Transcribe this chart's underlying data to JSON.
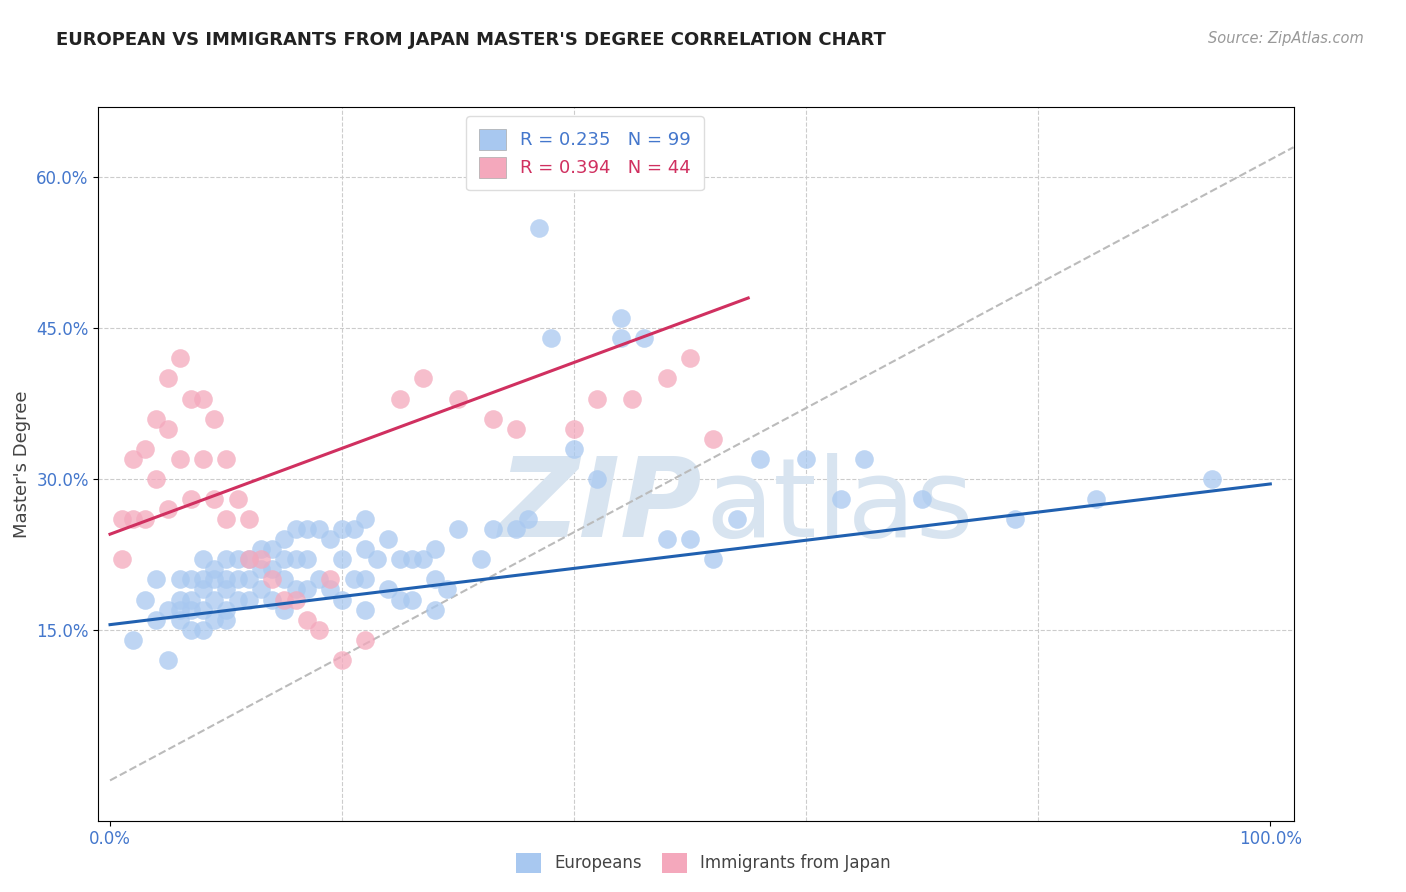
{
  "title": "EUROPEAN VS IMMIGRANTS FROM JAPAN MASTER'S DEGREE CORRELATION CHART",
  "source": "Source: ZipAtlas.com",
  "ylabel": "Master's Degree",
  "ytick_labels": [
    "15.0%",
    "30.0%",
    "45.0%",
    "60.0%"
  ],
  "ytick_values": [
    0.15,
    0.3,
    0.45,
    0.6
  ],
  "xlim": [
    -0.01,
    1.02
  ],
  "ylim": [
    -0.04,
    0.67
  ],
  "legend_blue_r": "0.235",
  "legend_blue_n": "99",
  "legend_pink_r": "0.394",
  "legend_pink_n": "44",
  "blue_color": "#A8C8F0",
  "pink_color": "#F4A8BC",
  "blue_line_color": "#2060B0",
  "pink_line_color": "#D03060",
  "dashed_line_color": "#BBBBBB",
  "watermark_zip": "ZIP",
  "watermark_atlas": "atlas",
  "watermark_color": "#D8E4F0",
  "blue_scatter_x": [
    0.02,
    0.03,
    0.04,
    0.04,
    0.05,
    0.05,
    0.06,
    0.06,
    0.06,
    0.06,
    0.07,
    0.07,
    0.07,
    0.07,
    0.08,
    0.08,
    0.08,
    0.08,
    0.08,
    0.09,
    0.09,
    0.09,
    0.09,
    0.1,
    0.1,
    0.1,
    0.1,
    0.1,
    0.11,
    0.11,
    0.11,
    0.12,
    0.12,
    0.12,
    0.13,
    0.13,
    0.13,
    0.14,
    0.14,
    0.14,
    0.15,
    0.15,
    0.15,
    0.15,
    0.16,
    0.16,
    0.16,
    0.17,
    0.17,
    0.17,
    0.18,
    0.18,
    0.19,
    0.19,
    0.2,
    0.2,
    0.2,
    0.21,
    0.21,
    0.22,
    0.22,
    0.22,
    0.22,
    0.23,
    0.24,
    0.24,
    0.25,
    0.25,
    0.26,
    0.26,
    0.27,
    0.28,
    0.28,
    0.28,
    0.29,
    0.3,
    0.32,
    0.33,
    0.35,
    0.36,
    0.37,
    0.38,
    0.4,
    0.42,
    0.44,
    0.44,
    0.46,
    0.48,
    0.5,
    0.52,
    0.54,
    0.56,
    0.6,
    0.63,
    0.65,
    0.7,
    0.78,
    0.85,
    0.95
  ],
  "blue_scatter_y": [
    0.14,
    0.18,
    0.2,
    0.16,
    0.17,
    0.12,
    0.2,
    0.18,
    0.17,
    0.16,
    0.2,
    0.18,
    0.17,
    0.15,
    0.22,
    0.2,
    0.19,
    0.17,
    0.15,
    0.21,
    0.2,
    0.18,
    0.16,
    0.22,
    0.2,
    0.19,
    0.17,
    0.16,
    0.22,
    0.2,
    0.18,
    0.22,
    0.2,
    0.18,
    0.23,
    0.21,
    0.19,
    0.23,
    0.21,
    0.18,
    0.24,
    0.22,
    0.2,
    0.17,
    0.25,
    0.22,
    0.19,
    0.25,
    0.22,
    0.19,
    0.25,
    0.2,
    0.24,
    0.19,
    0.25,
    0.22,
    0.18,
    0.25,
    0.2,
    0.26,
    0.23,
    0.2,
    0.17,
    0.22,
    0.24,
    0.19,
    0.22,
    0.18,
    0.22,
    0.18,
    0.22,
    0.23,
    0.2,
    0.17,
    0.19,
    0.25,
    0.22,
    0.25,
    0.25,
    0.26,
    0.55,
    0.44,
    0.33,
    0.3,
    0.46,
    0.44,
    0.44,
    0.24,
    0.24,
    0.22,
    0.26,
    0.32,
    0.32,
    0.28,
    0.32,
    0.28,
    0.26,
    0.28,
    0.3
  ],
  "pink_scatter_x": [
    0.01,
    0.01,
    0.02,
    0.02,
    0.03,
    0.03,
    0.04,
    0.04,
    0.05,
    0.05,
    0.05,
    0.06,
    0.06,
    0.07,
    0.07,
    0.08,
    0.08,
    0.09,
    0.09,
    0.1,
    0.1,
    0.11,
    0.12,
    0.12,
    0.13,
    0.14,
    0.15,
    0.16,
    0.17,
    0.18,
    0.19,
    0.2,
    0.22,
    0.25,
    0.27,
    0.3,
    0.33,
    0.35,
    0.4,
    0.42,
    0.45,
    0.48,
    0.5,
    0.52
  ],
  "pink_scatter_y": [
    0.26,
    0.22,
    0.32,
    0.26,
    0.33,
    0.26,
    0.36,
    0.3,
    0.4,
    0.35,
    0.27,
    0.42,
    0.32,
    0.38,
    0.28,
    0.38,
    0.32,
    0.36,
    0.28,
    0.32,
    0.26,
    0.28,
    0.26,
    0.22,
    0.22,
    0.2,
    0.18,
    0.18,
    0.16,
    0.15,
    0.2,
    0.12,
    0.14,
    0.38,
    0.4,
    0.38,
    0.36,
    0.35,
    0.35,
    0.38,
    0.38,
    0.4,
    0.42,
    0.34
  ],
  "blue_line_x0": 0.0,
  "blue_line_x1": 1.0,
  "blue_line_y0": 0.155,
  "blue_line_y1": 0.295,
  "pink_line_x0": 0.0,
  "pink_line_x1": 0.55,
  "pink_line_y0": 0.245,
  "pink_line_y1": 0.48,
  "dash_line_x0": 0.0,
  "dash_line_x1": 1.02,
  "dash_line_y0": 0.0,
  "dash_line_y1": 0.63
}
